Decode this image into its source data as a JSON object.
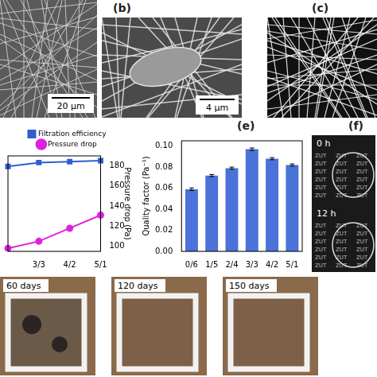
{
  "panels": {
    "a": {
      "scale_bar": "20 μm"
    },
    "b": {
      "letter": "(b)",
      "scale_bar": "4 μm"
    },
    "c": {
      "letter": "(c)"
    },
    "e": {
      "letter": "(e)"
    },
    "f": {
      "letter": "(f)",
      "photos": [
        "0 h",
        "12 h"
      ],
      "background_text": "ZUT"
    },
    "bottom": {
      "photos": [
        "60 days",
        "120 days",
        "150 days"
      ]
    }
  },
  "chart_data": [
    {
      "type": "line",
      "categories": [
        null,
        "3/3",
        "4/2",
        "5/1"
      ],
      "series": [
        {
          "name": "Filtration efficiency",
          "color": "#2f5fd0",
          "values": [
            98.9,
            99.3,
            99.4,
            99.5
          ],
          "marker": "square"
        },
        {
          "name": "Pressure drop",
          "color": "#e020e0",
          "values": [
            98,
            105,
            118,
            131
          ],
          "axis": "y2",
          "marker": "circle"
        }
      ],
      "ylim": [
        90,
        100
      ],
      "yticks": [],
      "y2lim": [
        95,
        190
      ],
      "y2ticks": [
        100,
        120,
        140,
        160,
        180
      ],
      "y2_label": "Pressure drop (Pa)",
      "legend": "top",
      "grid": false
    },
    {
      "type": "bar",
      "categories": [
        "0/6",
        "1/5",
        "2/4",
        "3/3",
        "4/2",
        "5/1"
      ],
      "values": [
        0.059,
        0.072,
        0.079,
        0.097,
        0.088,
        0.082
      ],
      "errors": [
        0.0012,
        0.001,
        0.001,
        0.0012,
        0.001,
        0.001
      ],
      "color": "#4a72d8",
      "ylabel": "Quality factor (Pa⁻¹)",
      "ylim": [
        0,
        0.105
      ],
      "yticks": [
        {
          "value": 0,
          "label": "0.00"
        },
        {
          "value": 0.02,
          "label": "0.02"
        },
        {
          "value": 0.04,
          "label": "0.04"
        },
        {
          "value": 0.06,
          "label": "0.06"
        },
        {
          "value": 0.08,
          "label": "0.08"
        },
        {
          "value": 0.1,
          "label": "0.10"
        }
      ],
      "grid": false
    }
  ]
}
